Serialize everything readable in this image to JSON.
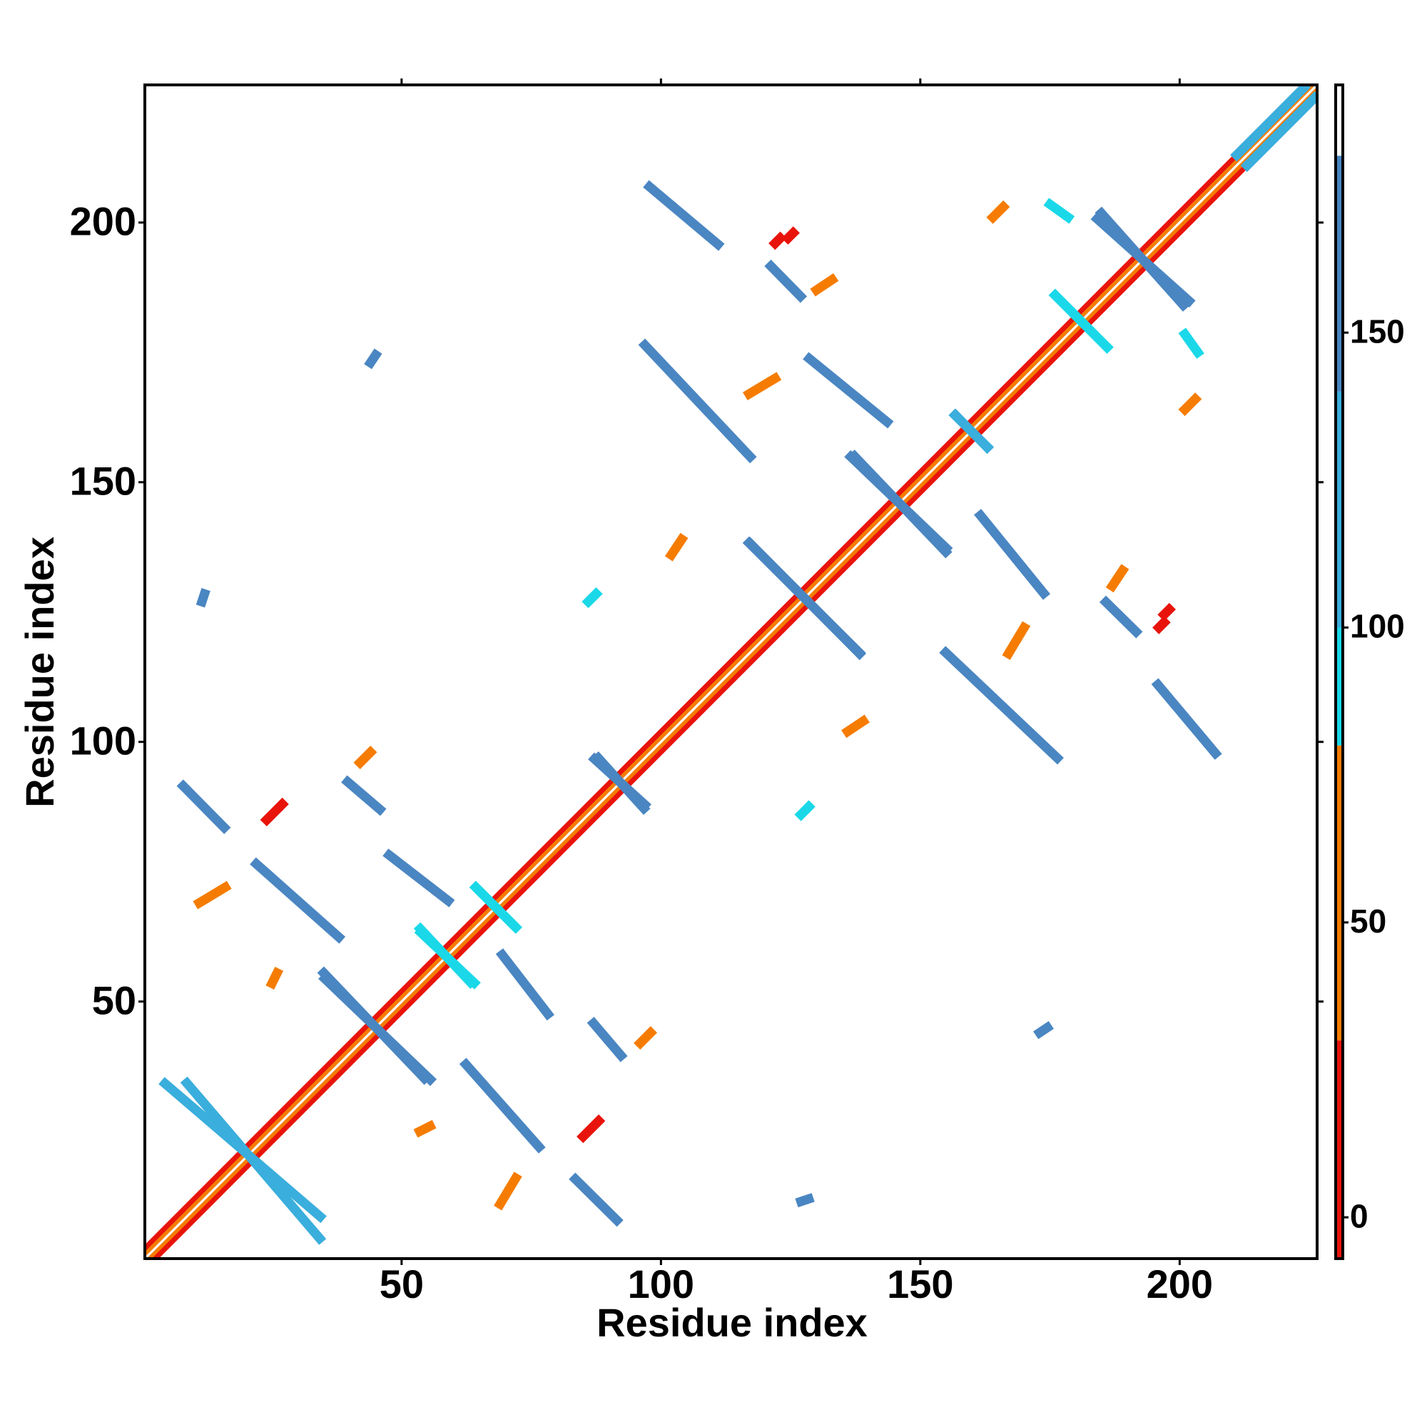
{
  "chart_data": {
    "type": "heatmap",
    "xlabel": "Residue index",
    "ylabel": "Residue index",
    "xlim": [
      0.5,
      226.5
    ],
    "ylim": [
      0.5,
      226.5
    ],
    "xticks": [
      50,
      100,
      150,
      200
    ],
    "yticks": [
      50,
      100,
      150,
      200
    ],
    "symmetric": true,
    "color_edges": [
      -7,
      30,
      80,
      100,
      140,
      180,
      192
    ],
    "colors": [
      "#e8140c",
      "#f57c00",
      "#1ad8e8",
      "#3aaedc",
      "#4a86c2",
      "#ffffff"
    ],
    "colorbar_ticks": [
      0,
      50,
      100,
      150
    ],
    "diagonal_bands": [
      {
        "offset": 1,
        "value": 45
      },
      {
        "offset": 2,
        "value": 15
      }
    ],
    "contacts": [
      {
        "x": [
          7.9,
          15.8
        ],
        "y": [
          91.5,
          83.5
        ],
        "value": 155
      },
      {
        "x": [
          22,
          37.9
        ],
        "y": [
          76.5,
          62.4
        ],
        "value": 150
      },
      {
        "x": [
          39.6,
          45.8
        ],
        "y": [
          92.3,
          87
        ],
        "value": 155
      },
      {
        "x": [
          47.6,
          59
        ],
        "y": [
          78.2,
          69.4
        ],
        "value": 145
      },
      {
        "x": [
          4.4,
          34.3
        ],
        "y": [
          34.2,
          8.6
        ],
        "value": 135
      },
      {
        "x": [
          35.2,
          55.5
        ],
        "y": [
          54.4,
          35
        ],
        "value": 150
      },
      {
        "x": [
          53.7,
          64
        ],
        "y": [
          63.3,
          53.6
        ],
        "value": 95
      },
      {
        "x": [
          64.3,
          71.3
        ],
        "y": [
          72,
          65
        ],
        "value": 95
      },
      {
        "x": [
          87.2,
          96.9
        ],
        "y": [
          96.7,
          87.9
        ],
        "value": 150
      },
      {
        "x": [
          117.2,
          138.3
        ],
        "y": [
          138.2,
          117
        ],
        "value": 155
      },
      {
        "x": [
          136.6,
          155
        ],
        "y": [
          154.9,
          137.3
        ],
        "value": 150
      },
      {
        "x": [
          156.8,
          162.9
        ],
        "y": [
          162.9,
          156.7
        ],
        "value": 135
      },
      {
        "x": [
          96.9,
          117.2
        ],
        "y": [
          176.4,
          154.9
        ],
        "value": 155
      },
      {
        "x": [
          128.6,
          143.6
        ],
        "y": [
          173.8,
          161.6
        ],
        "value": 160
      },
      {
        "x": [
          97.8,
          111
        ],
        "y": [
          206.9,
          195.8
        ],
        "value": 160
      },
      {
        "x": [
          121.2,
          126.9
        ],
        "y": [
          191.6,
          185.8
        ],
        "value": 160
      },
      {
        "x": [
          184.1,
          201.8
        ],
        "y": [
          200.7,
          184.9
        ],
        "value": 160
      },
      {
        "x": [
          176,
          186
        ],
        "y": [
          186,
          176
        ],
        "value": 95
      },
      {
        "x": [
          211,
          224
        ],
        "y": [
          213,
          226
        ],
        "value": 120
      },
      {
        "x": [
          86,
          87.5
        ],
        "y": [
          127,
          128.5
        ],
        "value": 95
      },
      {
        "x": [
          44,
          45
        ],
        "y": [
          173,
          174.5
        ],
        "value": 150
      },
      {
        "x": [
          11.5,
          12
        ],
        "y": [
          127,
          128.5
        ],
        "value": 150
      },
      {
        "x": [
          175,
          178.5
        ],
        "y": [
          203.5,
          201
        ],
        "value": 95
      },
      {
        "x": [
          117,
          122
        ],
        "y": [
          167,
          170
        ],
        "value": 40
      },
      {
        "x": [
          164,
          166
        ],
        "y": [
          201,
          203
        ],
        "value": 45
      },
      {
        "x": [
          122,
          123
        ],
        "y": [
          196,
          197
        ],
        "value": 15
      },
      {
        "x": [
          102,
          104
        ],
        "y": [
          136,
          139
        ],
        "value": 50
      },
      {
        "x": [
          11,
          16
        ],
        "y": [
          69,
          72
        ],
        "value": 50
      },
      {
        "x": [
          24,
          27
        ],
        "y": [
          85,
          88
        ],
        "value": 25
      },
      {
        "x": [
          42,
          44
        ],
        "y": [
          96,
          98
        ],
        "value": 50
      },
      {
        "x": [
          25,
          26
        ],
        "y": [
          53.5,
          55.5
        ],
        "value": 50
      },
      {
        "x": [
          130,
          133
        ],
        "y": [
          187,
          189
        ],
        "value": 45
      },
      {
        "x": [
          124.5,
          125.5
        ],
        "y": [
          197,
          198
        ],
        "value": 15
      }
    ]
  }
}
